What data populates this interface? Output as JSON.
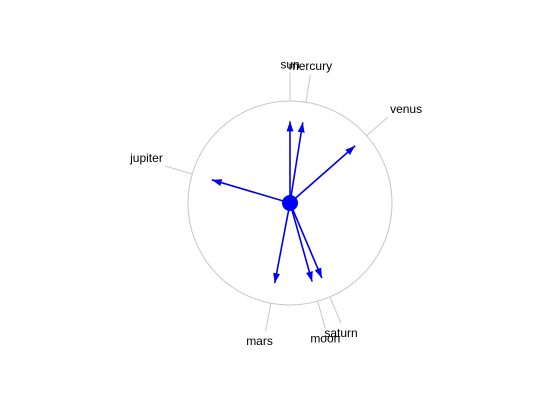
{
  "colors": {
    "background": "#ffffff",
    "circle": "#c8c8c8",
    "leader": "#c8c8c8",
    "arrow": "#0000ee",
    "center_dot": "#0000ff"
  },
  "bodies": [
    {
      "name": "sun",
      "label": "sun",
      "angle_deg": 90.0,
      "magnitude": 0.8,
      "label_dx": 0,
      "label_dy": -4,
      "anchor": "middle"
    },
    {
      "name": "mercury",
      "label": "mercury",
      "angle_deg": 81.0,
      "magnitude": 0.8,
      "label_dx": 0,
      "label_dy": -4,
      "anchor": "middle"
    },
    {
      "name": "venus",
      "label": "venus",
      "angle_deg": 41.3,
      "magnitude": 0.85,
      "label_dx": 2,
      "label_dy": -4,
      "anchor": "start"
    },
    {
      "name": "jupiter",
      "label": "jupiter",
      "angle_deg": 163.5,
      "magnitude": 0.8,
      "label_dx": -2,
      "label_dy": -4,
      "anchor": "end"
    },
    {
      "name": "mars",
      "label": "mars",
      "angle_deg": 259.2,
      "magnitude": 0.8,
      "label_dx": -6,
      "label_dy": 14,
      "anchor": "middle"
    },
    {
      "name": "moon",
      "label": "moon",
      "angle_deg": 285.7,
      "magnitude": 0.8,
      "label_dx": 0,
      "label_dy": 14,
      "anchor": "middle"
    },
    {
      "name": "saturn",
      "label": "saturn",
      "angle_deg": 293.0,
      "magnitude": 0.8,
      "label_dx": 0,
      "label_dy": 14,
      "anchor": "middle"
    }
  ]
}
